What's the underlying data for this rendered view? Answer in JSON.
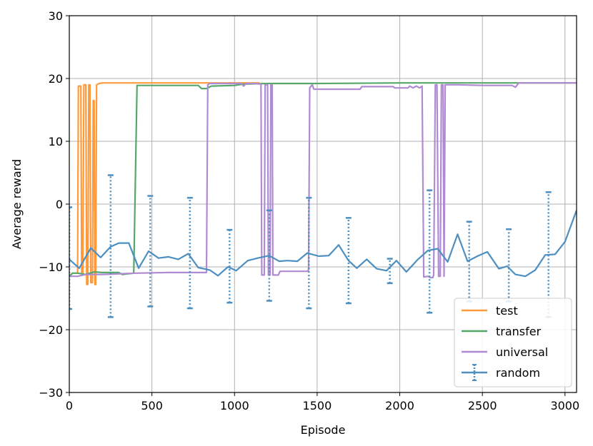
{
  "chart_data": {
    "type": "line",
    "xlabel": "Episode",
    "ylabel": "Average reward",
    "xlim": [
      0,
      3070
    ],
    "ylim": [
      -30,
      30
    ],
    "xticks": [
      0,
      500,
      1000,
      1500,
      2000,
      2500,
      3000
    ],
    "yticks": [
      -30,
      -20,
      -10,
      0,
      10,
      20,
      30
    ],
    "grid": true,
    "legend_position": "bottom-right",
    "series": [
      {
        "name": "test",
        "color": "#ff9a3c",
        "points": [
          [
            0,
            -11.5
          ],
          [
            20,
            -11
          ],
          [
            50,
            -11
          ],
          [
            55,
            18.8
          ],
          [
            70,
            18.8
          ],
          [
            75,
            -11
          ],
          [
            82,
            -11
          ],
          [
            88,
            19
          ],
          [
            100,
            19
          ],
          [
            105,
            -12.8
          ],
          [
            112,
            -12.8
          ],
          [
            118,
            19
          ],
          [
            125,
            19
          ],
          [
            130,
            -12.5
          ],
          [
            140,
            -12.5
          ],
          [
            145,
            16.5
          ],
          [
            150,
            16.5
          ],
          [
            155,
            -12.8
          ],
          [
            160,
            -12.8
          ],
          [
            165,
            19
          ],
          [
            180,
            19.2
          ],
          [
            200,
            19.3
          ],
          [
            300,
            19.3
          ],
          [
            500,
            19.3
          ],
          [
            800,
            19.3
          ],
          [
            1100,
            19.3
          ],
          [
            1150,
            19.3
          ]
        ]
      },
      {
        "name": "transfer",
        "color": "#55a868",
        "points": [
          [
            0,
            -11.5
          ],
          [
            20,
            -11
          ],
          [
            50,
            -11
          ],
          [
            100,
            -11.2
          ],
          [
            150,
            -10.8
          ],
          [
            200,
            -10.9
          ],
          [
            300,
            -10.9
          ],
          [
            320,
            -11.2
          ],
          [
            390,
            -11.0
          ],
          [
            410,
            18.9
          ],
          [
            600,
            18.9
          ],
          [
            780,
            18.9
          ],
          [
            800,
            18.4
          ],
          [
            830,
            18.4
          ],
          [
            860,
            18.8
          ],
          [
            1000,
            18.9
          ],
          [
            1050,
            19.1
          ],
          [
            1200,
            19.2
          ],
          [
            1500,
            19.2
          ],
          [
            2000,
            19.3
          ],
          [
            2500,
            19.3
          ],
          [
            3070,
            19.3
          ]
        ]
      },
      {
        "name": "universal",
        "color": "#b08ad3",
        "points": [
          [
            0,
            -11.5
          ],
          [
            50,
            -11.5
          ],
          [
            100,
            -11.2
          ],
          [
            200,
            -11.2
          ],
          [
            400,
            -11
          ],
          [
            600,
            -10.9
          ],
          [
            800,
            -10.9
          ],
          [
            830,
            -10.9
          ],
          [
            838,
            19
          ],
          [
            850,
            19.2
          ],
          [
            1000,
            19.2
          ],
          [
            1040,
            19.2
          ],
          [
            1055,
            18.8
          ],
          [
            1070,
            19.2
          ],
          [
            1120,
            19.2
          ],
          [
            1160,
            19.1
          ],
          [
            1165,
            -11.3
          ],
          [
            1180,
            -11.3
          ],
          [
            1185,
            19
          ],
          [
            1200,
            19
          ],
          [
            1205,
            -11.3
          ],
          [
            1215,
            -11.3
          ],
          [
            1220,
            19
          ],
          [
            1228,
            19
          ],
          [
            1232,
            -11.3
          ],
          [
            1265,
            -11.3
          ],
          [
            1275,
            -10.7
          ],
          [
            1440,
            -10.7
          ],
          [
            1448,
            -10.5
          ],
          [
            1455,
            18.5
          ],
          [
            1470,
            19
          ],
          [
            1480,
            18.3
          ],
          [
            1600,
            18.3
          ],
          [
            1760,
            18.3
          ],
          [
            1770,
            18.7
          ],
          [
            1900,
            18.7
          ],
          [
            1960,
            18.7
          ],
          [
            1970,
            18.5
          ],
          [
            2050,
            18.5
          ],
          [
            2060,
            18.8
          ],
          [
            2080,
            18.5
          ],
          [
            2100,
            18.8
          ],
          [
            2120,
            18.5
          ],
          [
            2135,
            18.8
          ],
          [
            2145,
            -11.6
          ],
          [
            2170,
            -11.5
          ],
          [
            2185,
            -11.7
          ],
          [
            2200,
            -11.7
          ],
          [
            2205,
            -11.3
          ],
          [
            2215,
            19
          ],
          [
            2225,
            19
          ],
          [
            2235,
            -11.5
          ],
          [
            2245,
            -11.5
          ],
          [
            2252,
            19
          ],
          [
            2262,
            19
          ],
          [
            2268,
            -11.5
          ],
          [
            2275,
            19
          ],
          [
            2300,
            19
          ],
          [
            2350,
            19
          ],
          [
            2500,
            18.9
          ],
          [
            2550,
            18.9
          ],
          [
            2600,
            18.9
          ],
          [
            2680,
            18.9
          ],
          [
            2700,
            18.6
          ],
          [
            2720,
            19.3
          ],
          [
            2800,
            19.3
          ],
          [
            3070,
            19.3
          ]
        ]
      },
      {
        "name": "random",
        "color": "#4c8fc0",
        "points": [
          [
            0,
            -8.8
          ],
          [
            60,
            -10.2
          ],
          [
            130,
            -7
          ],
          [
            190,
            -8.5
          ],
          [
            250,
            -6.8
          ],
          [
            300,
            -6.2
          ],
          [
            360,
            -6.2
          ],
          [
            420,
            -10.2
          ],
          [
            480,
            -7.5
          ],
          [
            540,
            -8.6
          ],
          [
            600,
            -8.4
          ],
          [
            660,
            -8.8
          ],
          [
            720,
            -7.9
          ],
          [
            780,
            -10.1
          ],
          [
            850,
            -10.5
          ],
          [
            900,
            -11.4
          ],
          [
            960,
            -10
          ],
          [
            1010,
            -10.6
          ],
          [
            1080,
            -9
          ],
          [
            1140,
            -8.6
          ],
          [
            1210,
            -8.2
          ],
          [
            1270,
            -9.1
          ],
          [
            1320,
            -9
          ],
          [
            1380,
            -9.1
          ],
          [
            1440,
            -7.8
          ],
          [
            1510,
            -8.3
          ],
          [
            1570,
            -8.2
          ],
          [
            1630,
            -6.5
          ],
          [
            1690,
            -9
          ],
          [
            1740,
            -10.2
          ],
          [
            1800,
            -8.8
          ],
          [
            1860,
            -10.3
          ],
          [
            1920,
            -10.6
          ],
          [
            1980,
            -9
          ],
          [
            2040,
            -10.8
          ],
          [
            2110,
            -8.8
          ],
          [
            2170,
            -7.4
          ],
          [
            2230,
            -7.1
          ],
          [
            2290,
            -9.2
          ],
          [
            2350,
            -4.8
          ],
          [
            2410,
            -9.1
          ],
          [
            2470,
            -8.3
          ],
          [
            2530,
            -7.6
          ],
          [
            2600,
            -10.3
          ],
          [
            2650,
            -9.9
          ],
          [
            2700,
            -11.2
          ],
          [
            2760,
            -11.5
          ],
          [
            2820,
            -10.5
          ],
          [
            2880,
            -8.1
          ],
          [
            2940,
            -8
          ],
          [
            3000,
            -6
          ],
          [
            3070,
            -1
          ]
        ],
        "errorbars": [
          {
            "x": 0,
            "mean": -8.8,
            "low": -16.7,
            "high": -0.5
          },
          {
            "x": 250,
            "mean": -6.8,
            "low": -18,
            "high": 4.6
          },
          {
            "x": 490,
            "mean": -7.5,
            "low": -16.3,
            "high": 1.3
          },
          {
            "x": 730,
            "mean": -7.9,
            "low": -16.6,
            "high": 1
          },
          {
            "x": 970,
            "mean": -10,
            "low": -15.7,
            "high": -4.1
          },
          {
            "x": 1210,
            "mean": -8.2,
            "low": -15.4,
            "high": -1
          },
          {
            "x": 1450,
            "mean": -7.8,
            "low": -16.6,
            "high": 1
          },
          {
            "x": 1690,
            "mean": -9,
            "low": -15.8,
            "high": -2.2
          },
          {
            "x": 1940,
            "mean": -10.6,
            "low": -12.6,
            "high": -8.7
          },
          {
            "x": 2180,
            "mean": -7.4,
            "low": -17.3,
            "high": 2.2
          },
          {
            "x": 2420,
            "mean": -9.1,
            "low": -15.5,
            "high": -2.8
          },
          {
            "x": 2660,
            "mean": -9.9,
            "low": -15.5,
            "high": -4
          },
          {
            "x": 2900,
            "mean": -8.1,
            "low": -18,
            "high": 1.9
          }
        ]
      }
    ]
  }
}
